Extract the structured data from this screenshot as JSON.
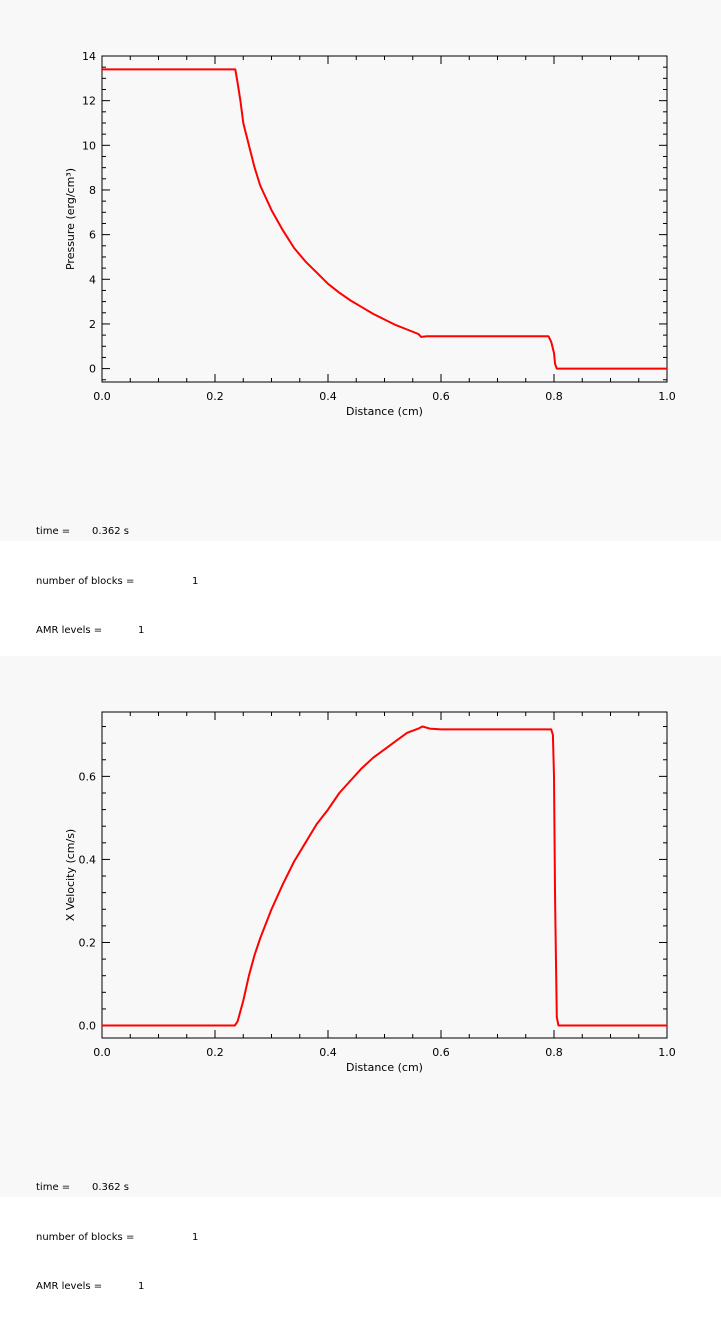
{
  "chart_data": [
    {
      "type": "line",
      "xlabel": "Distance (cm)",
      "ylabel": "Pressure (erg/cm³)",
      "xlim": [
        0.0,
        1.0
      ],
      "ylim": [
        -0.6,
        14.0
      ],
      "xticks": [
        "0.0",
        "0.2",
        "0.4",
        "0.6",
        "0.8",
        "1.0"
      ],
      "yticks": [
        "0",
        "2",
        "4",
        "6",
        "8",
        "10",
        "12",
        "14"
      ],
      "series": [
        {
          "color": "#ff0000",
          "x": [
            0.0,
            0.236,
            0.24,
            0.245,
            0.25,
            0.26,
            0.27,
            0.28,
            0.3,
            0.32,
            0.34,
            0.36,
            0.38,
            0.4,
            0.42,
            0.44,
            0.46,
            0.48,
            0.5,
            0.52,
            0.54,
            0.56,
            0.565,
            0.575,
            0.6,
            0.7,
            0.79,
            0.795,
            0.8,
            0.802,
            0.805,
            1.0
          ],
          "y": [
            13.4,
            13.4,
            12.8,
            12.0,
            11.0,
            10.0,
            9.0,
            8.2,
            7.1,
            6.2,
            5.4,
            4.8,
            4.3,
            3.8,
            3.4,
            3.05,
            2.75,
            2.45,
            2.2,
            1.95,
            1.75,
            1.55,
            1.42,
            1.45,
            1.45,
            1.45,
            1.45,
            1.2,
            0.7,
            0.2,
            0.0,
            0.0
          ]
        }
      ]
    },
    {
      "type": "line",
      "xlabel": "Distance (cm)",
      "ylabel": "X Velocity (cm/s)",
      "xlim": [
        0.0,
        1.0
      ],
      "ylim": [
        -0.03,
        0.755
      ],
      "xticks": [
        "0.0",
        "0.2",
        "0.4",
        "0.6",
        "0.8",
        "1.0"
      ],
      "yticks": [
        "0.0",
        "0.2",
        "0.4",
        "0.6"
      ],
      "series": [
        {
          "color": "#ff0000",
          "x": [
            0.0,
            0.235,
            0.24,
            0.25,
            0.26,
            0.27,
            0.28,
            0.3,
            0.32,
            0.34,
            0.36,
            0.38,
            0.4,
            0.42,
            0.44,
            0.46,
            0.48,
            0.5,
            0.52,
            0.54,
            0.56,
            0.567,
            0.58,
            0.6,
            0.7,
            0.795,
            0.798,
            0.8,
            0.802,
            0.805,
            0.808,
            1.0
          ],
          "y": [
            0.0,
            0.0,
            0.01,
            0.06,
            0.12,
            0.17,
            0.21,
            0.28,
            0.34,
            0.395,
            0.44,
            0.485,
            0.52,
            0.56,
            0.59,
            0.62,
            0.645,
            0.665,
            0.685,
            0.705,
            0.715,
            0.72,
            0.715,
            0.713,
            0.713,
            0.713,
            0.7,
            0.6,
            0.3,
            0.02,
            0.0,
            0.0
          ]
        }
      ]
    }
  ],
  "info": [
    {
      "time_label": "time =",
      "time_value": "0.362 s",
      "blocks_label": "number of blocks =",
      "blocks_value": "1",
      "amr_label": "AMR levels =",
      "amr_value": "1"
    },
    {
      "time_label": "time =",
      "time_value": "0.362 s",
      "blocks_label": "number of blocks =",
      "blocks_value": "1",
      "amr_label": "AMR levels =",
      "amr_value": "1"
    }
  ]
}
